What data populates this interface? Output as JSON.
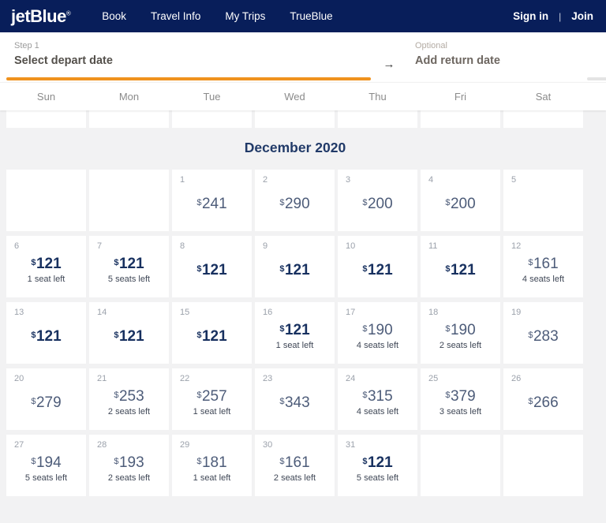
{
  "header": {
    "logo": "jetBlue",
    "nav": [
      "Book",
      "Travel Info",
      "My Trips",
      "TrueBlue"
    ],
    "auth": {
      "sign_in": "Sign in",
      "divider": "|",
      "join": "Join"
    }
  },
  "steps": {
    "depart": {
      "kicker": "Step 1",
      "label": "Select depart date"
    },
    "arrow": "→",
    "return": {
      "kicker": "Optional",
      "label": "Add return date"
    }
  },
  "weekdays": [
    "Sun",
    "Mon",
    "Tue",
    "Wed",
    "Thu",
    "Fri",
    "Sat"
  ],
  "month": {
    "title": "December 2020"
  },
  "calendar": {
    "currency": "$",
    "rows": [
      [
        null,
        null,
        {
          "day": "1",
          "price": "241"
        },
        {
          "day": "2",
          "price": "290"
        },
        {
          "day": "3",
          "price": "200"
        },
        {
          "day": "4",
          "price": "200"
        },
        {
          "day": "5"
        }
      ],
      [
        {
          "day": "6",
          "price": "121",
          "note": "1 seat left",
          "lowest": true
        },
        {
          "day": "7",
          "price": "121",
          "note": "5 seats left",
          "lowest": true
        },
        {
          "day": "8",
          "price": "121",
          "lowest": true
        },
        {
          "day": "9",
          "price": "121",
          "lowest": true
        },
        {
          "day": "10",
          "price": "121",
          "lowest": true
        },
        {
          "day": "11",
          "price": "121",
          "lowest": true
        },
        {
          "day": "12",
          "price": "161",
          "note": "4 seats left"
        }
      ],
      [
        {
          "day": "13",
          "price": "121",
          "lowest": true
        },
        {
          "day": "14",
          "price": "121",
          "lowest": true
        },
        {
          "day": "15",
          "price": "121",
          "lowest": true
        },
        {
          "day": "16",
          "price": "121",
          "note": "1 seat left",
          "lowest": true
        },
        {
          "day": "17",
          "price": "190",
          "note": "4 seats left"
        },
        {
          "day": "18",
          "price": "190",
          "note": "2 seats left"
        },
        {
          "day": "19",
          "price": "283"
        }
      ],
      [
        {
          "day": "20",
          "price": "279"
        },
        {
          "day": "21",
          "price": "253",
          "note": "2 seats left"
        },
        {
          "day": "22",
          "price": "257",
          "note": "1 seat left"
        },
        {
          "day": "23",
          "price": "343"
        },
        {
          "day": "24",
          "price": "315",
          "note": "4 seats left"
        },
        {
          "day": "25",
          "price": "379",
          "note": "3 seats left"
        },
        {
          "day": "26",
          "price": "266"
        }
      ],
      [
        {
          "day": "27",
          "price": "194",
          "note": "5 seats left"
        },
        {
          "day": "28",
          "price": "193",
          "note": "2 seats left"
        },
        {
          "day": "29",
          "price": "181",
          "note": "1 seat left"
        },
        {
          "day": "30",
          "price": "161",
          "note": "2 seats left"
        },
        {
          "day": "31",
          "price": "121",
          "note": "5 seats left",
          "lowest": true
        },
        null,
        null
      ]
    ]
  },
  "colors": {
    "brand_navy": "#081e5a",
    "accent_orange": "#f0921e",
    "lowest_fare": "#17305f",
    "regular_fare": "#4d5c79",
    "page_background": "#f2f2f3"
  }
}
